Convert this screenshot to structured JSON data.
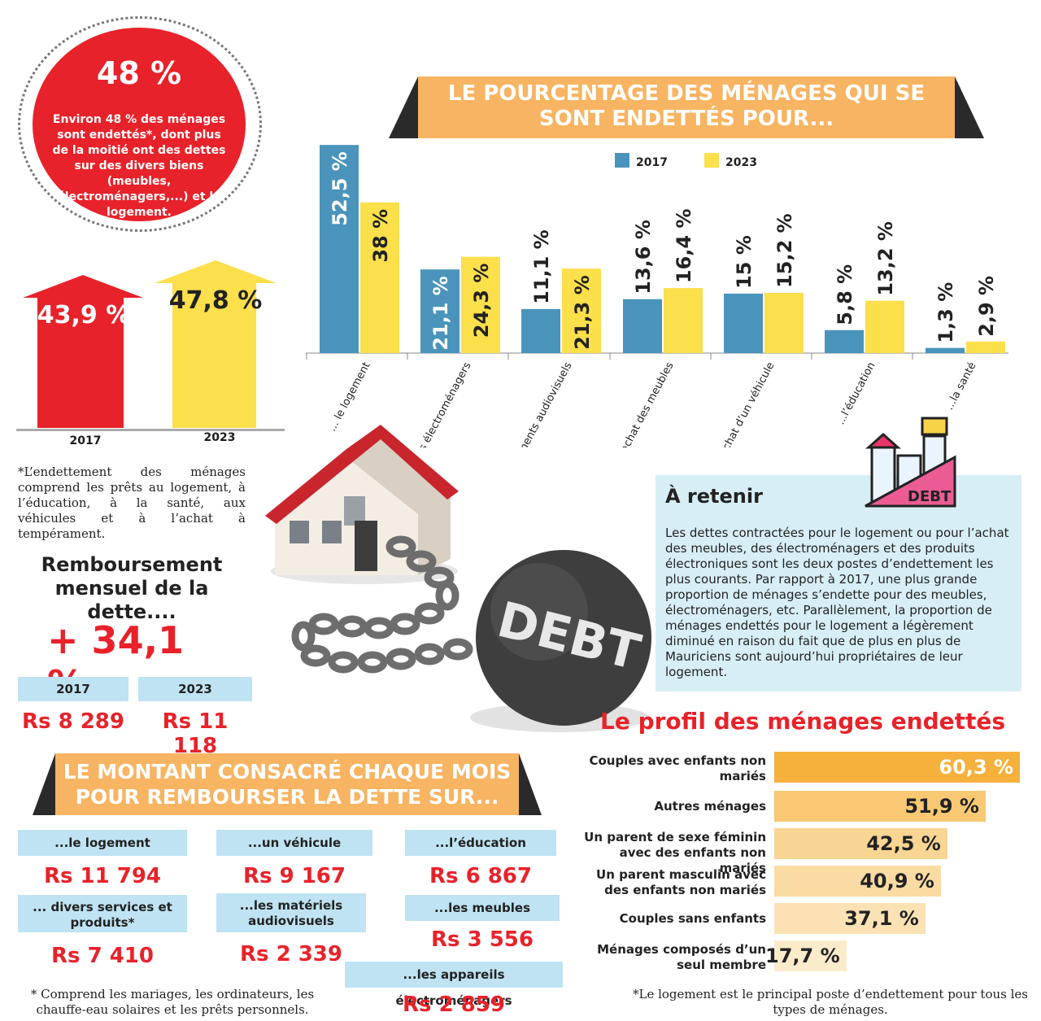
{
  "circle": {
    "big": "48 %",
    "text": "Environ 48 % des ménages sont endettés*, dont plus de la moitié ont des dettes sur des divers biens (meubles, électroménagers,...) et le logement."
  },
  "arrows": {
    "items": [
      {
        "value": "43,9 %",
        "year": "2017",
        "color": "#e8222a"
      },
      {
        "value": "47,8 %",
        "year": "2023",
        "color": "#fbdf4b"
      }
    ],
    "footnote": "*L’endettement des ménages comprend les prêts au logement, à l’éducation, à la santé, aux véhicules et à l’achat à tempérament."
  },
  "chart_data": {
    "type": "bar",
    "title": "LE POURCENTAGE DES MÉNAGES QUI SE SONT ENDETTÉS POUR...",
    "categories": [
      "... le logement",
      "...l’achat des électroménagers",
      "...l’achat des équipements audiovisuels",
      "...l’achat des meubles",
      "...l’achat d’un véhicule",
      "...l’éducation",
      "...la santé"
    ],
    "series": [
      {
        "name": "2017",
        "values": [
          52.5,
          21.1,
          11.1,
          13.6,
          15,
          5.8,
          1.3
        ],
        "labels": [
          "52,5 %",
          "21,1 %",
          "11,1 %",
          "13,6 %",
          "15 %",
          "5,8 %",
          "1,3 %"
        ],
        "color": "#4a94bc"
      },
      {
        "name": "2023",
        "values": [
          38,
          24.3,
          21.3,
          16.4,
          15.2,
          13.2,
          2.9
        ],
        "labels": [
          "38 %",
          "24,3 %",
          "21,3 %",
          "16,4 %",
          "15,2 %",
          "13,2 %",
          "2,9 %"
        ],
        "color": "#fbdf4b"
      }
    ],
    "ylim": [
      0,
      55
    ],
    "legend": "top"
  },
  "remboursement": {
    "title": "Remboursement mensuel de la dette....",
    "change": "+ 34,1 %",
    "years": [
      {
        "year": "2017",
        "amount": "Rs 8 289"
      },
      {
        "year": "2023",
        "amount": "Rs 11 118"
      }
    ]
  },
  "retenir": {
    "title": "À retenir",
    "icon_label": "DEBT",
    "text": "Les dettes contractées pour le logement ou pour l’achat des meubles, des électroménagers et des produits électroniques sont les deux postes d’endettement les plus courants. Par rapport à 2017, une plus grande proportion de ménages s’endette pour des meubles, électroménagers, etc. Parallèlement, la proportion de ménages endettés pour le logement a légèrement diminué en raison du fait que de plus en plus de Mauriciens sont aujourd’hui propriétaires de leur logement."
  },
  "ball_label": "DEBT",
  "montant": {
    "title_line1": "LE MONTANT CONSACRÉ CHAQUE MOIS",
    "title_line2": "POUR REMBOURSER LA DETTE SUR...",
    "items": [
      {
        "label": "...le logement",
        "amount": "Rs 11 794"
      },
      {
        "label": "...un véhicule",
        "amount": "Rs 9 167"
      },
      {
        "label": "...l’éducation",
        "amount": "Rs 6 867"
      },
      {
        "label": "... divers services et produits*",
        "amount": "Rs 7 410"
      },
      {
        "label": "...les matériels audiovisuels",
        "amount": "Rs 2 339"
      },
      {
        "label": "...les meubles",
        "amount": "Rs 3 556"
      },
      {
        "label": "...les appareils électroménagers",
        "amount": "Rs 2 859"
      }
    ],
    "footnote": "* Comprend les mariages, les ordinateurs, les chauffe-eau solaires et les prêts personnels."
  },
  "profil": {
    "title": "Le profil des ménages endettés",
    "rows": [
      {
        "label": "Couples avec enfants non mariés",
        "value": 60.3,
        "text": "60,3 %",
        "color": "#f5b13b"
      },
      {
        "label": "Autres ménages",
        "value": 51.9,
        "text": "51,9 %",
        "color": "#f8c873"
      },
      {
        "label": "Un parent de sexe féminin avec des enfants non mariés",
        "value": 42.5,
        "text": "42,5 %",
        "color": "#f9d593"
      },
      {
        "label": "Un parent masculin avec des enfants non mariés",
        "value": 40.9,
        "text": "40,9 %",
        "color": "#fadba3"
      },
      {
        "label": "Couples sans enfants",
        "value": 37.1,
        "text": "37,1 %",
        "color": "#fbe2b4"
      },
      {
        "label": "Ménages composés d’un seul membre",
        "value": 17.7,
        "text": "17,7 %",
        "color": "#fcebcb"
      }
    ],
    "footnote": "*Le logement est le principal poste d’endettement pour tous les types de ménages."
  }
}
